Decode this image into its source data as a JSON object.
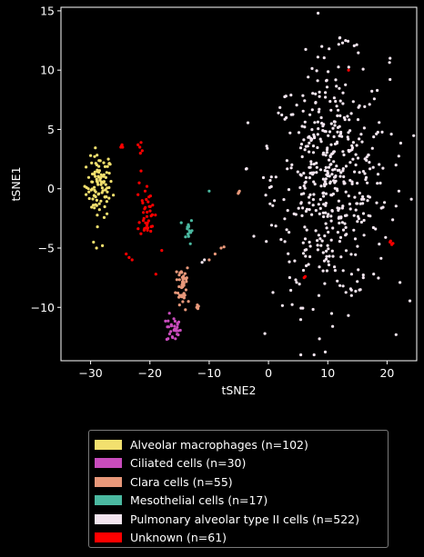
{
  "chart_data": {
    "type": "scatter",
    "xlabel": "tSNE2",
    "ylabel": "tSNE1",
    "xlim": [
      -35,
      25
    ],
    "ylim": [
      -14.5,
      15.3
    ],
    "xticks": [
      -30,
      -20,
      -10,
      0,
      10,
      20
    ],
    "yticks": [
      -10,
      -5,
      0,
      5,
      10,
      15
    ],
    "background": "#000000",
    "legend_position": "below",
    "series": [
      {
        "name": "Alveolar macrophages (n=102)",
        "color": "#f2e06e",
        "count": 102,
        "clusters": [
          {
            "cx": -28.5,
            "cy": 0.2,
            "sx": 1.1,
            "sy": 1.3,
            "n": 96
          }
        ],
        "points": [
          [
            -29.5,
            -4.5
          ],
          [
            -29.0,
            -5.0
          ],
          [
            -28.0,
            -4.8
          ],
          [
            -30.0,
            2.8
          ],
          [
            -27.0,
            2.5
          ],
          [
            -31.0,
            0.2
          ]
        ]
      },
      {
        "name": "Ciliated cells (n=30)",
        "color": "#c94cbd",
        "count": 30,
        "clusters": [
          {
            "cx": -16.0,
            "cy": -11.8,
            "sx": 0.6,
            "sy": 0.6,
            "n": 30
          }
        ],
        "points": []
      },
      {
        "name": "Clara cells (n=55)",
        "color": "#e8987a",
        "count": 55,
        "clusters": [
          {
            "cx": -14.5,
            "cy": -8.0,
            "sx": 0.55,
            "sy": 0.9,
            "n": 40
          }
        ],
        "points": [
          [
            -12.0,
            -9.8
          ],
          [
            -11.9,
            -10.1
          ],
          [
            -11.8,
            -9.9
          ],
          [
            -12.1,
            -10.0
          ],
          [
            -5.0,
            -0.3
          ],
          [
            -4.9,
            -0.2
          ],
          [
            -5.1,
            -0.4
          ],
          [
            -8.0,
            -5.0
          ],
          [
            -9.0,
            -5.5
          ],
          [
            -10.0,
            -6.0
          ],
          [
            -7.5,
            -4.9
          ],
          [
            -15.5,
            -7.0
          ],
          [
            -13.5,
            -9.5
          ],
          [
            -14.0,
            -10.2
          ],
          [
            -15.0,
            -9.8
          ]
        ]
      },
      {
        "name": "Mesothelial cells (n=17)",
        "color": "#4bb9a1",
        "count": 17,
        "clusters": [
          {
            "cx": -13.5,
            "cy": -3.5,
            "sx": 0.35,
            "sy": 0.55,
            "n": 16
          }
        ],
        "points": [
          [
            -10.0,
            -0.2
          ]
        ]
      },
      {
        "name": "Pulmonary alveolar type II cells (n=522)",
        "color": "#f2e4ee",
        "count": 522,
        "clusters": [
          {
            "cx": 10.5,
            "cy": 0.5,
            "sx": 4.9,
            "sy": 5.0,
            "n": 505
          }
        ],
        "points": [
          [
            -0.3,
            3.6
          ],
          [
            -0.2,
            3.4
          ],
          [
            -10.8,
            -6.0
          ],
          [
            -11.2,
            -6.2
          ],
          [
            12.0,
            12.7
          ],
          [
            13.0,
            12.5
          ],
          [
            12.5,
            12.3
          ],
          [
            22.0,
            -0.2
          ],
          [
            21.5,
            2.0
          ],
          [
            0.5,
            1.0
          ],
          [
            1.0,
            -1.0
          ],
          [
            16.0,
            -7.5
          ],
          [
            15.5,
            -8.5
          ],
          [
            14.0,
            -9.0
          ],
          [
            20.5,
            11.0
          ],
          [
            9.0,
            12.0
          ],
          [
            8.5,
            -9.0
          ]
        ]
      },
      {
        "name": "Unknown (n=61)",
        "color": "#ff0000",
        "count": 61,
        "clusters": [
          {
            "cx": -20.5,
            "cy": -2.3,
            "sx": 0.6,
            "sy": 0.9,
            "n": 22
          }
        ],
        "points": [
          [
            -21.5,
            3.9
          ],
          [
            -21.7,
            3.5
          ],
          [
            -21.3,
            3.2
          ],
          [
            -21.6,
            3.0
          ],
          [
            -22.0,
            3.7
          ],
          [
            -24.8,
            3.6
          ],
          [
            -24.9,
            3.5
          ],
          [
            -24.7,
            3.7
          ],
          [
            -24.6,
            3.5
          ],
          [
            -24.0,
            -5.5
          ],
          [
            -23.5,
            -5.8
          ],
          [
            -23.0,
            -6.0
          ],
          [
            -18.0,
            -5.2
          ],
          [
            -19.0,
            -7.2
          ],
          [
            -21.5,
            1.5
          ],
          [
            -21.8,
            0.5
          ],
          [
            -22.0,
            -0.5
          ],
          [
            -21.2,
            -1.2
          ],
          [
            -20.8,
            -0.2
          ],
          [
            20.5,
            -4.5
          ],
          [
            20.8,
            -4.7
          ],
          [
            21.0,
            -4.6
          ],
          [
            20.6,
            -4.4
          ],
          [
            13.5,
            10.0
          ],
          [
            6.0,
            -7.5
          ],
          [
            6.2,
            -7.4
          ],
          [
            -21.0,
            -2.5
          ],
          [
            -20.4,
            -3.5
          ],
          [
            -19.8,
            -3.2
          ],
          [
            -20.9,
            -1.7
          ],
          [
            -20.1,
            -1.5
          ],
          [
            -20.6,
            -0.9
          ],
          [
            -19.9,
            -0.6
          ],
          [
            -20.2,
            -2.7
          ],
          [
            -20.7,
            -3.3
          ],
          [
            -21.1,
            -2.0
          ],
          [
            -19.6,
            -2.2
          ],
          [
            -20.3,
            -1.1
          ],
          [
            -20.5,
            0.2
          ]
        ]
      }
    ]
  }
}
